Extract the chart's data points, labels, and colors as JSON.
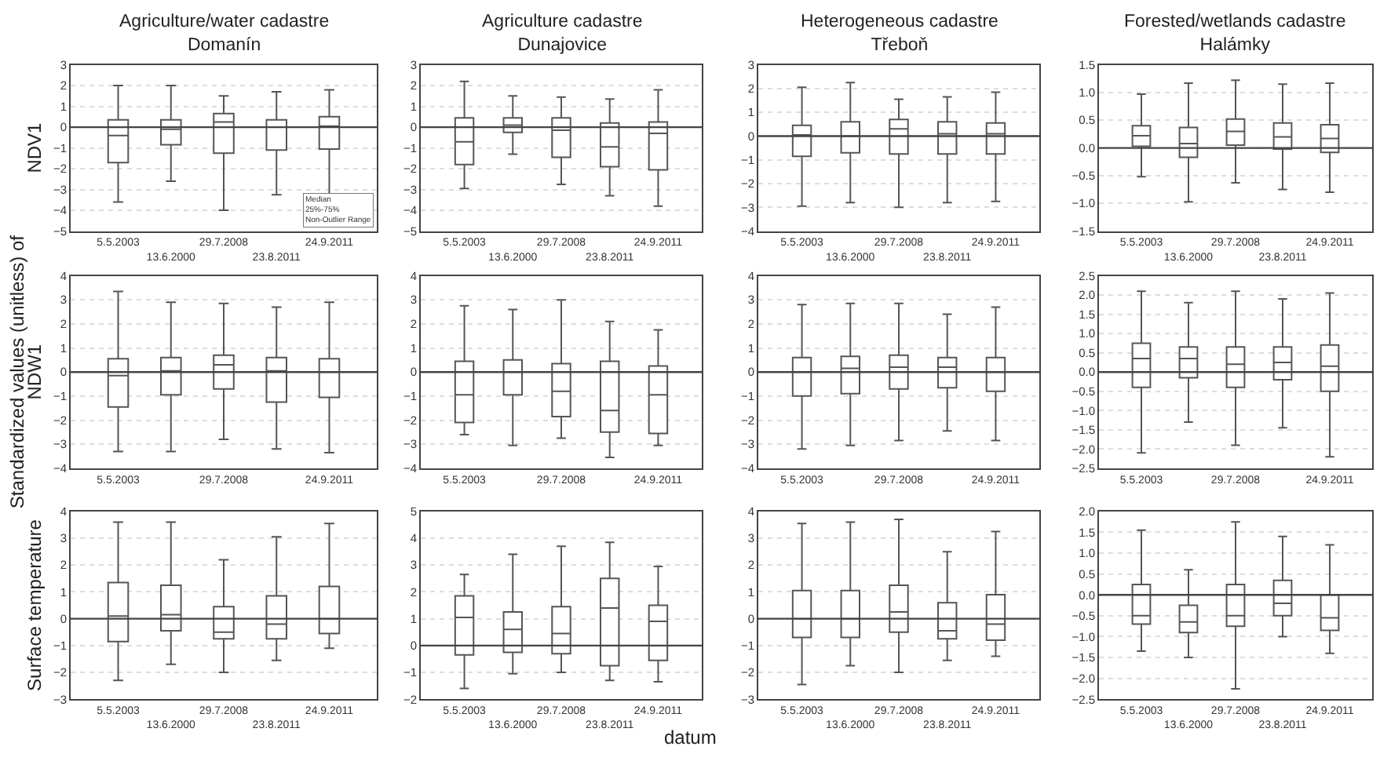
{
  "chart_data": [
    {
      "type": "box",
      "title": "Agriculture/water cadastre\nDomanín",
      "ylabel": "NDV1",
      "categories": [
        "5.5.2003",
        "13.6.2000",
        "29.7.2008",
        "23.8.2011",
        "24.9.2011"
      ],
      "color": "#555555",
      "ylim": [
        -5,
        3
      ],
      "yticks": [
        -5,
        -4,
        -3,
        -2,
        -1,
        0,
        1,
        2,
        3
      ],
      "grid": "y",
      "ref_lines": [
        {
          "axis": "y",
          "value": 0,
          "color": "#444444"
        }
      ],
      "annotations": [
        "Median",
        "25%-75%",
        "Non-Outlier Range"
      ],
      "boxes": [
        {
          "low": -3.6,
          "q1": -1.7,
          "median": -0.4,
          "q3": 0.35,
          "high": 2.0
        },
        {
          "low": -2.6,
          "q1": -0.85,
          "median": -0.1,
          "q3": 0.35,
          "high": 2.0
        },
        {
          "low": -4.0,
          "q1": -1.25,
          "median": 0.25,
          "q3": 0.65,
          "high": 1.5
        },
        {
          "low": -3.25,
          "q1": -1.1,
          "median": 0.0,
          "q3": 0.35,
          "high": 1.7
        },
        {
          "low": -3.35,
          "q1": -1.05,
          "median": 0.05,
          "q3": 0.5,
          "high": 1.8
        }
      ]
    },
    {
      "type": "box",
      "title": "Agriculture cadastre\nDunajovice",
      "categories": [
        "5.5.2003",
        "13.6.2000",
        "29.7.2008",
        "23.8.2011",
        "24.9.2011"
      ],
      "color": "#555555",
      "ylim": [
        -5,
        3
      ],
      "yticks": [
        -5,
        -4,
        -3,
        -2,
        -1,
        0,
        1,
        2,
        3
      ],
      "grid": "y",
      "ref_lines": [
        {
          "axis": "y",
          "value": 0,
          "color": "#444444"
        }
      ],
      "boxes": [
        {
          "low": -2.95,
          "q1": -1.8,
          "median": -0.7,
          "q3": 0.45,
          "high": 2.2
        },
        {
          "low": -1.3,
          "q1": -0.25,
          "median": 0.1,
          "q3": 0.45,
          "high": 1.5
        },
        {
          "low": -2.75,
          "q1": -1.45,
          "median": -0.15,
          "q3": 0.45,
          "high": 1.45
        },
        {
          "low": -3.3,
          "q1": -1.9,
          "median": -0.95,
          "q3": 0.2,
          "high": 1.35
        },
        {
          "low": -3.8,
          "q1": -2.05,
          "median": -0.3,
          "q3": 0.25,
          "high": 1.8
        }
      ]
    },
    {
      "type": "box",
      "title": "Heterogeneous cadastre\nTřeboň",
      "categories": [
        "5.5.2003",
        "13.6.2000",
        "29.7.2008",
        "23.8.2011",
        "24.9.2011"
      ],
      "color": "#555555",
      "ylim": [
        -4,
        3
      ],
      "yticks": [
        -4,
        -3,
        -2,
        -1,
        0,
        1,
        2,
        3
      ],
      "grid": "y",
      "ref_lines": [
        {
          "axis": "y",
          "value": 0,
          "color": "#444444"
        }
      ],
      "boxes": [
        {
          "low": -2.95,
          "q1": -0.85,
          "median": 0.05,
          "q3": 0.45,
          "high": 2.05
        },
        {
          "low": -2.8,
          "q1": -0.7,
          "median": 0.0,
          "q3": 0.6,
          "high": 2.25
        },
        {
          "low": -3.0,
          "q1": -0.75,
          "median": 0.3,
          "q3": 0.7,
          "high": 1.55
        },
        {
          "low": -2.8,
          "q1": -0.75,
          "median": 0.1,
          "q3": 0.6,
          "high": 1.65
        },
        {
          "low": -2.75,
          "q1": -0.75,
          "median": 0.1,
          "q3": 0.55,
          "high": 1.85
        }
      ]
    },
    {
      "type": "box",
      "title": "Forested/wetlands cadastre\nHalámky",
      "categories": [
        "5.5.2003",
        "13.6.2000",
        "29.7.2008",
        "23.8.2011",
        "24.9.2011"
      ],
      "color": "#555555",
      "ylim": [
        -1.5,
        1.5
      ],
      "yticks": [
        {
          "value": -1.5,
          "label": "−1.5"
        },
        {
          "value": -1,
          "label": "−1.0"
        },
        {
          "value": -0.5,
          "label": "−0.5"
        },
        {
          "value": 0,
          "label": "0.0"
        },
        {
          "value": 0.5,
          "label": "0.5"
        },
        {
          "value": 1,
          "label": "1.0"
        },
        {
          "value": 1.5,
          "label": "1.5"
        }
      ],
      "grid": "y",
      "ref_lines": [
        {
          "axis": "y",
          "value": 0,
          "color": "#444444"
        }
      ],
      "boxes": [
        {
          "low": -0.52,
          "q1": 0.03,
          "median": 0.22,
          "q3": 0.4,
          "high": 0.97
        },
        {
          "low": -0.97,
          "q1": -0.17,
          "median": 0.08,
          "q3": 0.37,
          "high": 1.17
        },
        {
          "low": -0.63,
          "q1": 0.05,
          "median": 0.3,
          "q3": 0.52,
          "high": 1.22
        },
        {
          "low": -0.75,
          "q1": -0.02,
          "median": 0.2,
          "q3": 0.45,
          "high": 1.15
        },
        {
          "low": -0.8,
          "q1": -0.08,
          "median": 0.17,
          "q3": 0.42,
          "high": 1.17
        }
      ]
    },
    {
      "type": "box",
      "ylabel": "NDW1",
      "annotations": [
        "Standardized values (unitless) of"
      ],
      "categories": [
        "5.5.2003",
        null,
        "29.7.2008",
        null,
        "24.9.2011"
      ],
      "color": "#555555",
      "ylim": [
        -4,
        4
      ],
      "yticks": [
        -4,
        -3,
        -2,
        -1,
        0,
        1,
        2,
        3,
        4
      ],
      "grid": "y",
      "ref_lines": [
        {
          "axis": "y",
          "value": 0,
          "color": "#444444"
        }
      ],
      "boxes": [
        {
          "low": -3.3,
          "q1": -1.45,
          "median": -0.15,
          "q3": 0.55,
          "high": 3.35
        },
        {
          "low": -3.3,
          "q1": -0.95,
          "median": 0.05,
          "q3": 0.6,
          "high": 2.9
        },
        {
          "low": -2.8,
          "q1": -0.7,
          "median": 0.3,
          "q3": 0.7,
          "high": 2.85
        },
        {
          "low": -3.2,
          "q1": -1.25,
          "median": 0.05,
          "q3": 0.6,
          "high": 2.7
        },
        {
          "low": -3.35,
          "q1": -1.05,
          "median": 0.0,
          "q3": 0.55,
          "high": 2.9
        }
      ]
    },
    {
      "type": "box",
      "categories": [
        "5.5.2003",
        null,
        "29.7.2008",
        null,
        "24.9.2011"
      ],
      "color": "#555555",
      "ylim": [
        -4,
        4
      ],
      "yticks": [
        -4,
        -3,
        -2,
        -1,
        0,
        1,
        2,
        3,
        4
      ],
      "grid": "y",
      "ref_lines": [
        {
          "axis": "y",
          "value": 0,
          "color": "#444444"
        }
      ],
      "boxes": [
        {
          "low": -2.6,
          "q1": -2.1,
          "median": -0.95,
          "q3": 0.45,
          "high": 2.75
        },
        {
          "low": -3.05,
          "q1": -0.95,
          "median": 0.0,
          "q3": 0.5,
          "high": 2.6
        },
        {
          "low": -2.75,
          "q1": -1.85,
          "median": -0.8,
          "q3": 0.35,
          "high": 3.0
        },
        {
          "low": -3.55,
          "q1": -2.5,
          "median": -1.6,
          "q3": 0.45,
          "high": 2.1
        },
        {
          "low": -3.05,
          "q1": -2.55,
          "median": -0.95,
          "q3": 0.25,
          "high": 1.75
        }
      ]
    },
    {
      "type": "box",
      "categories": [
        "5.5.2003",
        null,
        "29.7.2008",
        null,
        "24.9.2011"
      ],
      "color": "#555555",
      "ylim": [
        -4,
        4
      ],
      "yticks": [
        -4,
        -3,
        -2,
        -1,
        0,
        1,
        2,
        3,
        4
      ],
      "grid": "y",
      "ref_lines": [
        {
          "axis": "y",
          "value": 0,
          "color": "#444444"
        }
      ],
      "boxes": [
        {
          "low": -3.2,
          "q1": -1.0,
          "median": 0.0,
          "q3": 0.6,
          "high": 2.8
        },
        {
          "low": -3.05,
          "q1": -0.9,
          "median": 0.15,
          "q3": 0.65,
          "high": 2.85
        },
        {
          "low": -2.85,
          "q1": -0.7,
          "median": 0.2,
          "q3": 0.7,
          "high": 2.85
        },
        {
          "low": -2.45,
          "q1": -0.65,
          "median": 0.2,
          "q3": 0.6,
          "high": 2.4
        },
        {
          "low": -2.85,
          "q1": -0.8,
          "median": 0.0,
          "q3": 0.6,
          "high": 2.7
        }
      ]
    },
    {
      "type": "box",
      "categories": [
        "5.5.2003",
        null,
        "29.7.2008",
        null,
        "24.9.2011"
      ],
      "color": "#555555",
      "ylim": [
        -2.5,
        2.5
      ],
      "yticks": [
        {
          "value": -2.5,
          "label": "−2.5"
        },
        {
          "value": -2,
          "label": "−2.0"
        },
        {
          "value": -1.5,
          "label": "−1.5"
        },
        {
          "value": -1,
          "label": "−1.0"
        },
        {
          "value": -0.5,
          "label": "−0.5"
        },
        {
          "value": 0,
          "label": "0.0"
        },
        {
          "value": 0.5,
          "label": "0.5"
        },
        {
          "value": 1,
          "label": "1.0"
        },
        {
          "value": 1.5,
          "label": "1.5"
        },
        {
          "value": 2,
          "label": "2.0"
        },
        {
          "value": 2.5,
          "label": "2.5"
        }
      ],
      "grid": "y",
      "ref_lines": [
        {
          "axis": "y",
          "value": 0,
          "color": "#444444"
        }
      ],
      "boxes": [
        {
          "low": -2.1,
          "q1": -0.4,
          "median": 0.35,
          "q3": 0.75,
          "high": 2.1
        },
        {
          "low": -1.3,
          "q1": -0.15,
          "median": 0.35,
          "q3": 0.65,
          "high": 1.8
        },
        {
          "low": -1.9,
          "q1": -0.4,
          "median": 0.2,
          "q3": 0.65,
          "high": 2.1
        },
        {
          "low": -1.45,
          "q1": -0.2,
          "median": 0.25,
          "q3": 0.65,
          "high": 1.9
        },
        {
          "low": -2.2,
          "q1": -0.5,
          "median": 0.15,
          "q3": 0.7,
          "high": 2.05
        }
      ]
    },
    {
      "type": "box",
      "ylabel": "Surface temperature",
      "categories": [
        "5.5.2003",
        "13.6.2000",
        "29.7.2008",
        "23.8.2011",
        "24.9.2011"
      ],
      "color": "#555555",
      "ylim": [
        -3,
        4
      ],
      "yticks": [
        -3,
        -2,
        -1,
        0,
        1,
        2,
        3,
        4
      ],
      "grid": "y",
      "ref_lines": [
        {
          "axis": "y",
          "value": 0,
          "color": "#444444"
        }
      ],
      "boxes": [
        {
          "low": -2.3,
          "q1": -0.85,
          "median": 0.1,
          "q3": 1.35,
          "high": 3.6
        },
        {
          "low": -1.7,
          "q1": -0.45,
          "median": 0.15,
          "q3": 1.25,
          "high": 3.6
        },
        {
          "low": -2.0,
          "q1": -0.75,
          "median": -0.5,
          "q3": 0.45,
          "high": 2.2
        },
        {
          "low": -1.55,
          "q1": -0.75,
          "median": -0.2,
          "q3": 0.85,
          "high": 3.05
        },
        {
          "low": -1.1,
          "q1": -0.55,
          "median": 0.0,
          "q3": 1.2,
          "high": 3.55
        }
      ]
    },
    {
      "type": "box",
      "xlabel": "datum",
      "categories": [
        "5.5.2003",
        "13.6.2000",
        "29.7.2008",
        "23.8.2011",
        "24.9.2011"
      ],
      "color": "#555555",
      "ylim": [
        -2,
        5
      ],
      "yticks": [
        -2,
        -1,
        0,
        1,
        2,
        3,
        4,
        5
      ],
      "grid": "y",
      "ref_lines": [
        {
          "axis": "y",
          "value": 0,
          "color": "#444444"
        }
      ],
      "boxes": [
        {
          "low": -1.6,
          "q1": -0.35,
          "median": 1.05,
          "q3": 1.85,
          "high": 2.65
        },
        {
          "low": -1.05,
          "q1": -0.25,
          "median": 0.6,
          "q3": 1.25,
          "high": 3.4
        },
        {
          "low": -1.0,
          "q1": -0.3,
          "median": 0.45,
          "q3": 1.45,
          "high": 3.7
        },
        {
          "low": -1.3,
          "q1": -0.75,
          "median": 1.4,
          "q3": 2.5,
          "high": 3.85
        },
        {
          "low": -1.35,
          "q1": -0.55,
          "median": 0.9,
          "q3": 1.5,
          "high": 2.95
        }
      ]
    },
    {
      "type": "box",
      "categories": [
        "5.5.2003",
        "13.6.2000",
        "29.7.2008",
        "23.8.2011",
        "24.9.2011"
      ],
      "color": "#555555",
      "ylim": [
        -3,
        4
      ],
      "yticks": [
        -3,
        -2,
        -1,
        0,
        1,
        2,
        3,
        4
      ],
      "grid": "y",
      "ref_lines": [
        {
          "axis": "y",
          "value": 0,
          "color": "#444444"
        }
      ],
      "boxes": [
        {
          "low": -2.45,
          "q1": -0.7,
          "median": 0.0,
          "q3": 1.05,
          "high": 3.55
        },
        {
          "low": -1.75,
          "q1": -0.7,
          "median": 0.0,
          "q3": 1.05,
          "high": 3.6
        },
        {
          "low": -2.0,
          "q1": -0.5,
          "median": 0.25,
          "q3": 1.25,
          "high": 3.7
        },
        {
          "low": -1.55,
          "q1": -0.75,
          "median": -0.45,
          "q3": 0.6,
          "high": 2.5
        },
        {
          "low": -1.4,
          "q1": -0.8,
          "median": -0.2,
          "q3": 0.9,
          "high": 3.25
        }
      ]
    },
    {
      "type": "box",
      "categories": [
        "5.5.2003",
        "13.6.2000",
        "29.7.2008",
        "23.8.2011",
        "24.9.2011"
      ],
      "color": "#555555",
      "ylim": [
        -2.5,
        2
      ],
      "yticks": [
        {
          "value": -2.5,
          "label": "−2.5"
        },
        {
          "value": -2,
          "label": "−2.0"
        },
        {
          "value": -1.5,
          "label": "−1.5"
        },
        {
          "value": -1,
          "label": "−1.0"
        },
        {
          "value": -0.5,
          "label": "−0.5"
        },
        {
          "value": 0,
          "label": "0.0"
        },
        {
          "value": 0.5,
          "label": "0.5"
        },
        {
          "value": 1,
          "label": "1.0"
        },
        {
          "value": 1.5,
          "label": "1.5"
        },
        {
          "value": 2,
          "label": "2.0"
        }
      ],
      "grid": "y",
      "ref_lines": [
        {
          "axis": "y",
          "value": 0,
          "color": "#444444"
        }
      ],
      "boxes": [
        {
          "low": -1.35,
          "q1": -0.7,
          "median": -0.5,
          "q3": 0.25,
          "high": 1.55
        },
        {
          "low": -1.5,
          "q1": -0.9,
          "median": -0.65,
          "q3": -0.25,
          "high": 0.6
        },
        {
          "low": -2.25,
          "q1": -0.75,
          "median": -0.5,
          "q3": 0.25,
          "high": 1.75
        },
        {
          "low": -1.0,
          "q1": -0.5,
          "median": -0.2,
          "q3": 0.35,
          "high": 1.4
        },
        {
          "low": -1.4,
          "q1": -0.85,
          "median": -0.55,
          "q3": 0.0,
          "high": 1.2
        }
      ]
    }
  ]
}
